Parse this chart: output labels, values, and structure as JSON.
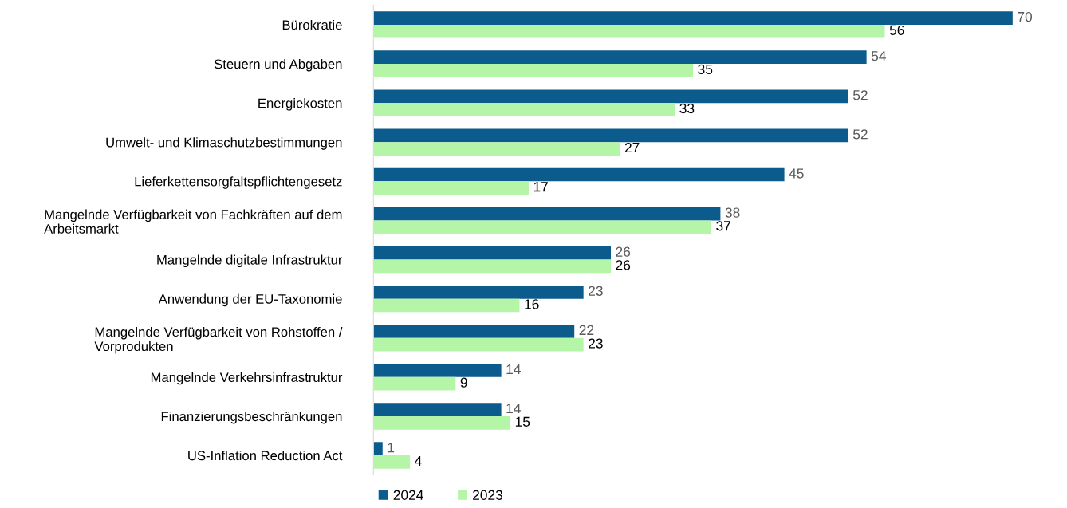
{
  "chart_data": {
    "type": "bar",
    "orientation": "horizontal",
    "data_labels": true,
    "legend": "bottom",
    "grid": false,
    "tick_labels": "y",
    "categories": [
      "Bürokratie",
      "Steuern und Abgaben",
      "Energiekosten",
      "Umwelt- und Klimaschutzbestimmungen",
      "Lieferkettensorgfaltspflichtengesetz",
      "Mangelnde Verfügbarkeit von Fachkräften auf dem\nArbeitsmarkt",
      "Mangelnde digitale Infrastruktur",
      "Anwendung der EU-Taxonomie",
      "Mangelnde Verfügbarkeit von Rohstoffen /\nVorprodukten",
      "Mangelnde Verkehrsinfrastruktur",
      "Finanzierungsbeschränkungen",
      "US-Inflation Reduction Act"
    ],
    "series": [
      {
        "name": "2024",
        "color": "#0b5b8c",
        "values": [
          70,
          54,
          52,
          52,
          45,
          38,
          26,
          23,
          22,
          14,
          14,
          1
        ]
      },
      {
        "name": "2023",
        "color": "#b5f5a8",
        "values": [
          56,
          35,
          33,
          27,
          17,
          37,
          26,
          16,
          23,
          9,
          15,
          4
        ]
      }
    ]
  }
}
